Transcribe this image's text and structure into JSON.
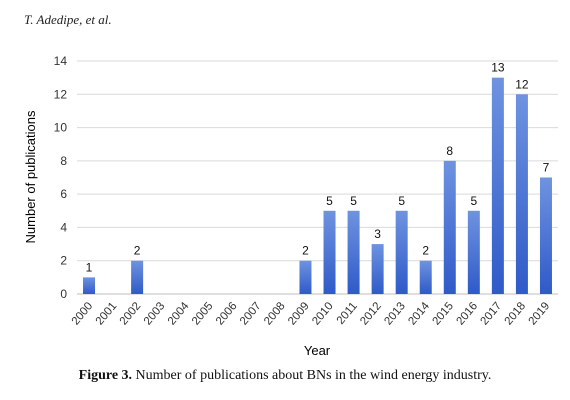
{
  "header": {
    "authors": "T. Adedipe, et al."
  },
  "caption": {
    "label": "Figure 3.",
    "text": " Number of publications about BNs in the wind energy industry."
  },
  "colors": {
    "bar_top": "#6f93e0",
    "bar_bottom": "#2f5ac8",
    "grid": "#d9d9d9",
    "text": "#333333"
  },
  "chart_data": {
    "type": "bar",
    "title": "",
    "xlabel": "Year",
    "ylabel": "Number of publications",
    "ylim": [
      0,
      14
    ],
    "yticks": [
      0,
      2,
      4,
      6,
      8,
      10,
      12,
      14
    ],
    "grid": true,
    "categories": [
      "2000",
      "2001",
      "2002",
      "2003",
      "2004",
      "2005",
      "2006",
      "2007",
      "2008",
      "2009",
      "2010",
      "2011",
      "2012",
      "2013",
      "2014",
      "2015",
      "2016",
      "2017",
      "2018",
      "2019"
    ],
    "values": [
      1,
      0,
      2,
      0,
      0,
      0,
      0,
      0,
      0,
      2,
      5,
      5,
      3,
      5,
      2,
      8,
      5,
      13,
      12,
      7
    ]
  }
}
